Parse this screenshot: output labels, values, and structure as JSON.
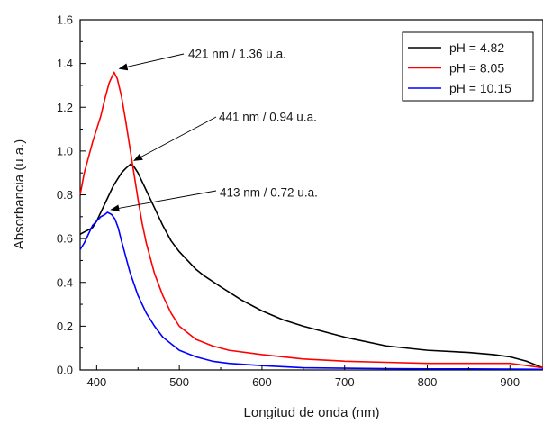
{
  "chart_data": {
    "type": "line",
    "xlabel": "Longitud de onda (nm)",
    "ylabel": "Absorbancia (u.a.)",
    "xlim": [
      380,
      940
    ],
    "ylim": [
      0.0,
      1.6
    ],
    "x_ticks": [
      400,
      500,
      600,
      700,
      800,
      900
    ],
    "x_tick_labels": [
      "400",
      "500",
      "600",
      "700",
      "800",
      "900"
    ],
    "y_ticks": [
      0.0,
      0.2,
      0.4,
      0.6,
      0.8,
      1.0,
      1.2,
      1.4,
      1.6
    ],
    "y_tick_labels": [
      "0.0",
      "0.2",
      "0.4",
      "0.6",
      "0.8",
      "1.0",
      "1.2",
      "1.4",
      "1.6"
    ],
    "grid": false,
    "legend_position": "top-right",
    "series": [
      {
        "name": "pH = 4.82",
        "color": "#000000",
        "x": [
          380,
          385,
          390,
          395,
          400,
          405,
          410,
          415,
          420,
          425,
          430,
          435,
          441,
          445,
          450,
          455,
          460,
          470,
          480,
          490,
          500,
          510,
          520,
          530,
          550,
          575,
          600,
          625,
          650,
          700,
          750,
          800,
          850,
          880,
          900,
          920,
          940
        ],
        "y": [
          0.62,
          0.63,
          0.64,
          0.65,
          0.68,
          0.72,
          0.76,
          0.8,
          0.84,
          0.87,
          0.9,
          0.92,
          0.94,
          0.93,
          0.9,
          0.86,
          0.82,
          0.74,
          0.66,
          0.59,
          0.54,
          0.5,
          0.46,
          0.43,
          0.38,
          0.32,
          0.27,
          0.23,
          0.2,
          0.15,
          0.11,
          0.09,
          0.08,
          0.07,
          0.06,
          0.04,
          0.01
        ]
      },
      {
        "name": "pH = 8.05",
        "color": "#ff0000",
        "x": [
          380,
          385,
          390,
          395,
          400,
          405,
          410,
          415,
          421,
          425,
          430,
          435,
          440,
          445,
          450,
          455,
          460,
          470,
          480,
          490,
          500,
          520,
          540,
          560,
          600,
          650,
          700,
          750,
          800,
          850,
          900,
          920,
          940
        ],
        "y": [
          0.8,
          0.9,
          0.97,
          1.04,
          1.1,
          1.16,
          1.24,
          1.31,
          1.36,
          1.33,
          1.25,
          1.14,
          1.02,
          0.9,
          0.78,
          0.67,
          0.58,
          0.44,
          0.34,
          0.26,
          0.2,
          0.14,
          0.11,
          0.09,
          0.07,
          0.05,
          0.04,
          0.035,
          0.03,
          0.03,
          0.03,
          0.02,
          0.01
        ]
      },
      {
        "name": "pH = 10.15",
        "color": "#0000ff",
        "x": [
          380,
          385,
          390,
          395,
          400,
          405,
          410,
          413,
          418,
          422,
          426,
          430,
          435,
          440,
          450,
          460,
          470,
          480,
          490,
          500,
          520,
          540,
          560,
          600,
          650,
          700,
          750,
          800,
          850,
          900,
          940
        ],
        "y": [
          0.55,
          0.58,
          0.62,
          0.66,
          0.68,
          0.7,
          0.71,
          0.72,
          0.71,
          0.69,
          0.65,
          0.59,
          0.52,
          0.45,
          0.34,
          0.26,
          0.2,
          0.15,
          0.12,
          0.09,
          0.06,
          0.04,
          0.03,
          0.02,
          0.01,
          0.008,
          0.006,
          0.005,
          0.005,
          0.004,
          0.003
        ]
      }
    ],
    "annotations": [
      {
        "text": "421 nm / 1.36 u.a.",
        "x": 421,
        "y": 1.36
      },
      {
        "text": "441 nm / 0.94 u.a.",
        "x": 441,
        "y": 0.94
      },
      {
        "text": "413 nm / 0.72 u.a.",
        "x": 413,
        "y": 0.72
      }
    ]
  }
}
